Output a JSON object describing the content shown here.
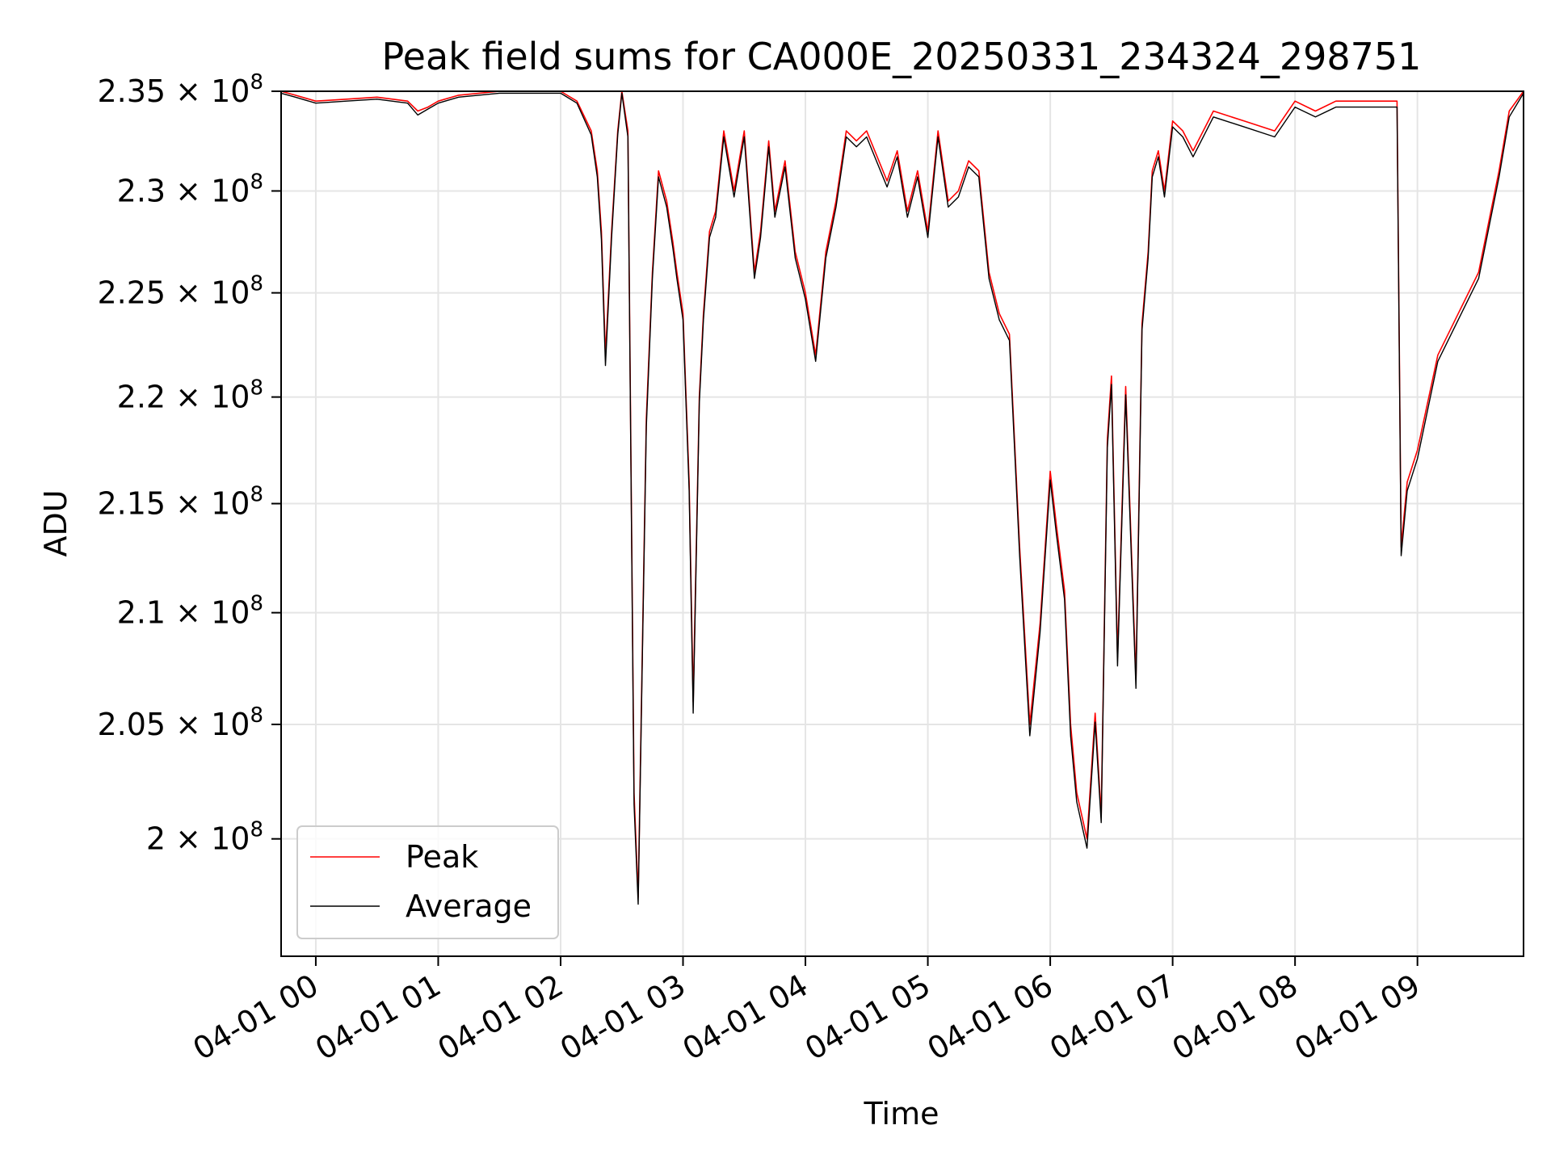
{
  "chart_data": {
    "type": "line",
    "title": "Peak field sums for CA000E_20250331_234324_298751",
    "xlabel": "Time",
    "ylabel": "ADU",
    "x_ticks": [
      "04-01 00",
      "04-01 01",
      "04-01 02",
      "04-01 03",
      "04-01 04",
      "04-01 05",
      "04-01 06",
      "04-01 07",
      "04-01 08",
      "04-01 09"
    ],
    "y_ticks": [
      {
        "value": 200000000,
        "mantissa": "2",
        "label": "2 × 10^8"
      },
      {
        "value": 205000000,
        "mantissa": "2.05",
        "label": "2.05 × 10^8"
      },
      {
        "value": 210000000,
        "mantissa": "2.1",
        "label": "2.1 × 10^8"
      },
      {
        "value": 215000000,
        "mantissa": "2.15",
        "label": "2.15 × 10^8"
      },
      {
        "value": 220000000,
        "mantissa": "2.2",
        "label": "2.2 × 10^8"
      },
      {
        "value": 225000000,
        "mantissa": "2.25",
        "label": "2.25 × 10^8"
      },
      {
        "value": 230000000,
        "mantissa": "2.3",
        "label": "2.3 × 10^8"
      },
      {
        "value": 235000000,
        "mantissa": "2.35",
        "label": "2.35 × 10^8"
      }
    ],
    "y_tick_exponent": "8",
    "y_scale": "log",
    "xlim": [
      "2025-03-31 23:43",
      "2025-04-01 09:52"
    ],
    "ylim": [
      195000000,
      235000000
    ],
    "grid": true,
    "legend_position": "lower-left",
    "series": [
      {
        "name": "Peak",
        "color": "#ff0000",
        "x": [
          "2025-03-31 23:43",
          "2025-03-31 23:50",
          "2025-04-01 00:00",
          "2025-04-01 00:15",
          "2025-04-01 00:30",
          "2025-04-01 00:45",
          "2025-04-01 00:50",
          "2025-04-01 00:55",
          "2025-04-01 01:00",
          "2025-04-01 01:10",
          "2025-04-01 01:30",
          "2025-04-01 02:00",
          "2025-04-01 02:08",
          "2025-04-01 02:15",
          "2025-04-01 02:18",
          "2025-04-01 02:20",
          "2025-04-01 02:22",
          "2025-04-01 02:25",
          "2025-04-01 02:28",
          "2025-04-01 02:30",
          "2025-04-01 02:33",
          "2025-04-01 02:36",
          "2025-04-01 02:38",
          "2025-04-01 02:40",
          "2025-04-01 02:42",
          "2025-04-01 02:45",
          "2025-04-01 02:48",
          "2025-04-01 02:52",
          "2025-04-01 02:55",
          "2025-04-01 02:57",
          "2025-04-01 03:00",
          "2025-04-01 03:03",
          "2025-04-01 03:05",
          "2025-04-01 03:08",
          "2025-04-01 03:10",
          "2025-04-01 03:13",
          "2025-04-01 03:16",
          "2025-04-01 03:20",
          "2025-04-01 03:25",
          "2025-04-01 03:30",
          "2025-04-01 03:35",
          "2025-04-01 03:38",
          "2025-04-01 03:42",
          "2025-04-01 03:45",
          "2025-04-01 03:50",
          "2025-04-01 03:55",
          "2025-04-01 04:00",
          "2025-04-01 04:05",
          "2025-04-01 04:10",
          "2025-04-01 04:15",
          "2025-04-01 04:20",
          "2025-04-01 04:25",
          "2025-04-01 04:30",
          "2025-04-01 04:40",
          "2025-04-01 04:45",
          "2025-04-01 04:50",
          "2025-04-01 04:55",
          "2025-04-01 05:00",
          "2025-04-01 05:05",
          "2025-04-01 05:10",
          "2025-04-01 05:15",
          "2025-04-01 05:20",
          "2025-04-01 05:25",
          "2025-04-01 05:30",
          "2025-04-01 05:35",
          "2025-04-01 05:40",
          "2025-04-01 05:45",
          "2025-04-01 05:50",
          "2025-04-01 05:55",
          "2025-04-01 06:00",
          "2025-04-01 06:03",
          "2025-04-01 06:07",
          "2025-04-01 06:10",
          "2025-04-01 06:13",
          "2025-04-01 06:18",
          "2025-04-01 06:22",
          "2025-04-01 06:25",
          "2025-04-01 06:28",
          "2025-04-01 06:30",
          "2025-04-01 06:33",
          "2025-04-01 06:37",
          "2025-04-01 06:42",
          "2025-04-01 06:45",
          "2025-04-01 06:48",
          "2025-04-01 06:50",
          "2025-04-01 06:53",
          "2025-04-01 06:56",
          "2025-04-01 07:00",
          "2025-04-01 07:05",
          "2025-04-01 07:10",
          "2025-04-01 07:20",
          "2025-04-01 07:35",
          "2025-04-01 07:50",
          "2025-04-01 08:00",
          "2025-04-01 08:10",
          "2025-04-01 08:20",
          "2025-04-01 08:30",
          "2025-04-01 08:50",
          "2025-04-01 08:52",
          "2025-04-01 08:55",
          "2025-04-01 09:00",
          "2025-04-01 09:10",
          "2025-04-01 09:20",
          "2025-04-01 09:30",
          "2025-04-01 09:40",
          "2025-04-01 09:45",
          "2025-04-01 09:52"
        ],
        "y": [
          235000000,
          234800000,
          234500000,
          234600000,
          234700000,
          234500000,
          234000000,
          234200000,
          234500000,
          234800000,
          235000000,
          235000000,
          234500000,
          233000000,
          231000000,
          228000000,
          222000000,
          228000000,
          233000000,
          235000000,
          233000000,
          202000000,
          197500000,
          208000000,
          219000000,
          226000000,
          231000000,
          229500000,
          227500000,
          226000000,
          224000000,
          216000000,
          206000000,
          220000000,
          224000000,
          228000000,
          229000000,
          233000000,
          230000000,
          233000000,
          226000000,
          228000000,
          232500000,
          229000000,
          231500000,
          227000000,
          225000000,
          222000000,
          227000000,
          229500000,
          233000000,
          232500000,
          233000000,
          230500000,
          232000000,
          229000000,
          231000000,
          228000000,
          233000000,
          229500000,
          230000000,
          231500000,
          231000000,
          226000000,
          224000000,
          223000000,
          213000000,
          205000000,
          209500000,
          216500000,
          214000000,
          211000000,
          205000000,
          202000000,
          200000000,
          205500000,
          201000000,
          218000000,
          221000000,
          208000000,
          220500000,
          207000000,
          223500000,
          227000000,
          231000000,
          232000000,
          230000000,
          233500000,
          233000000,
          232000000,
          234000000,
          233500000,
          233000000,
          234500000,
          234000000,
          234500000,
          234500000,
          234500000,
          213000000,
          216000000,
          217500000,
          222000000,
          224000000,
          226000000,
          231000000,
          234000000,
          235000000
        ]
      },
      {
        "name": "Average",
        "color": "#000000",
        "x": [
          "2025-03-31 23:43",
          "2025-03-31 23:50",
          "2025-04-01 00:00",
          "2025-04-01 00:15",
          "2025-04-01 00:30",
          "2025-04-01 00:45",
          "2025-04-01 00:50",
          "2025-04-01 00:55",
          "2025-04-01 01:00",
          "2025-04-01 01:10",
          "2025-04-01 01:30",
          "2025-04-01 02:00",
          "2025-04-01 02:08",
          "2025-04-01 02:15",
          "2025-04-01 02:18",
          "2025-04-01 02:20",
          "2025-04-01 02:22",
          "2025-04-01 02:25",
          "2025-04-01 02:28",
          "2025-04-01 02:30",
          "2025-04-01 02:33",
          "2025-04-01 02:36",
          "2025-04-01 02:38",
          "2025-04-01 02:40",
          "2025-04-01 02:42",
          "2025-04-01 02:45",
          "2025-04-01 02:48",
          "2025-04-01 02:52",
          "2025-04-01 02:55",
          "2025-04-01 02:57",
          "2025-04-01 03:00",
          "2025-04-01 03:03",
          "2025-04-01 03:05",
          "2025-04-01 03:08",
          "2025-04-01 03:10",
          "2025-04-01 03:13",
          "2025-04-01 03:16",
          "2025-04-01 03:20",
          "2025-04-01 03:25",
          "2025-04-01 03:30",
          "2025-04-01 03:35",
          "2025-04-01 03:38",
          "2025-04-01 03:42",
          "2025-04-01 03:45",
          "2025-04-01 03:50",
          "2025-04-01 03:55",
          "2025-04-01 04:00",
          "2025-04-01 04:05",
          "2025-04-01 04:10",
          "2025-04-01 04:15",
          "2025-04-01 04:20",
          "2025-04-01 04:25",
          "2025-04-01 04:30",
          "2025-04-01 04:40",
          "2025-04-01 04:45",
          "2025-04-01 04:50",
          "2025-04-01 04:55",
          "2025-04-01 05:00",
          "2025-04-01 05:05",
          "2025-04-01 05:10",
          "2025-04-01 05:15",
          "2025-04-01 05:20",
          "2025-04-01 05:25",
          "2025-04-01 05:30",
          "2025-04-01 05:35",
          "2025-04-01 05:40",
          "2025-04-01 05:45",
          "2025-04-01 05:50",
          "2025-04-01 05:55",
          "2025-04-01 06:00",
          "2025-04-01 06:03",
          "2025-04-01 06:07",
          "2025-04-01 06:10",
          "2025-04-01 06:13",
          "2025-04-01 06:18",
          "2025-04-01 06:22",
          "2025-04-01 06:25",
          "2025-04-01 06:28",
          "2025-04-01 06:30",
          "2025-04-01 06:33",
          "2025-04-01 06:37",
          "2025-04-01 06:42",
          "2025-04-01 06:45",
          "2025-04-01 06:48",
          "2025-04-01 06:50",
          "2025-04-01 06:53",
          "2025-04-01 06:56",
          "2025-04-01 07:00",
          "2025-04-01 07:05",
          "2025-04-01 07:10",
          "2025-04-01 07:20",
          "2025-04-01 07:35",
          "2025-04-01 07:50",
          "2025-04-01 08:00",
          "2025-04-01 08:10",
          "2025-04-01 08:20",
          "2025-04-01 08:30",
          "2025-04-01 08:50",
          "2025-04-01 08:52",
          "2025-04-01 08:55",
          "2025-04-01 09:00",
          "2025-04-01 09:10",
          "2025-04-01 09:20",
          "2025-04-01 09:30",
          "2025-04-01 09:40",
          "2025-04-01 09:45",
          "2025-04-01 09:52"
        ],
        "y": [
          234900000,
          234700000,
          234400000,
          234500000,
          234600000,
          234400000,
          233800000,
          234100000,
          234400000,
          234700000,
          234900000,
          234900000,
          234400000,
          232800000,
          230700000,
          227600000,
          221500000,
          227700000,
          232800000,
          234900000,
          232700000,
          201500000,
          197200000,
          207600000,
          218600000,
          225700000,
          230700000,
          229200000,
          227200000,
          225700000,
          223700000,
          215600000,
          205500000,
          219700000,
          223700000,
          227700000,
          228700000,
          232700000,
          229700000,
          232700000,
          225700000,
          227700000,
          232200000,
          228700000,
          231200000,
          226700000,
          224700000,
          221700000,
          226700000,
          229200000,
          232700000,
          232200000,
          232700000,
          230200000,
          231700000,
          228700000,
          230700000,
          227700000,
          232700000,
          229200000,
          229700000,
          231200000,
          230700000,
          225700000,
          223700000,
          222700000,
          212600000,
          204500000,
          209100000,
          216100000,
          213600000,
          210600000,
          204500000,
          201600000,
          199600000,
          205100000,
          200700000,
          217600000,
          220600000,
          207600000,
          220100000,
          206600000,
          223200000,
          226700000,
          230700000,
          231700000,
          229700000,
          233200000,
          232700000,
          231700000,
          233700000,
          233200000,
          232700000,
          234200000,
          233700000,
          234200000,
          234200000,
          234200000,
          212600000,
          215600000,
          217100000,
          221700000,
          223700000,
          225700000,
          230700000,
          233700000,
          234900000
        ]
      }
    ]
  }
}
